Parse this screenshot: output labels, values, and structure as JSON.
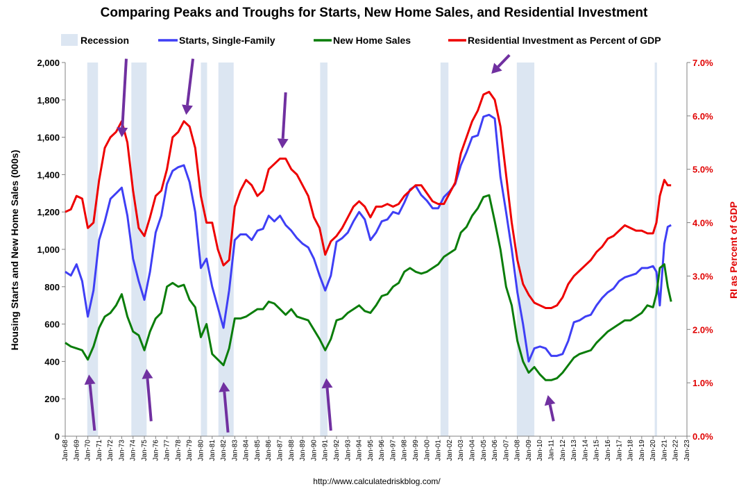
{
  "chart_data": {
    "type": "line",
    "title": "Comparing Peaks and Troughs for Starts, New Home Sales, and Residential Investment",
    "ylabel_left": "Housing Starts and New Home Sales (000s)",
    "ylabel_right": "RI as Percent of GDP",
    "source": "http://www.calculatedriskblog.com/",
    "x_range": [
      1968.0,
      2023.0
    ],
    "ylim_left": [
      0,
      2000
    ],
    "ylim_right": [
      0.0,
      7.0
    ],
    "y_ticks_left": [
      "0",
      "200",
      "400",
      "600",
      "800",
      "1,000",
      "1,200",
      "1,400",
      "1,600",
      "1,800",
      "2,000"
    ],
    "y_ticks_right": [
      "0.0%",
      "1.0%",
      "2.0%",
      "3.0%",
      "4.0%",
      "5.0%",
      "6.0%",
      "7.0%"
    ],
    "x_ticks": [
      "Jan-68",
      "Jan-69",
      "Jan-70",
      "Jan-71",
      "Jan-72",
      "Jan-73",
      "Jan-74",
      "Jan-75",
      "Jan-76",
      "Jan-77",
      "Jan-78",
      "Jan-79",
      "Jan-80",
      "Jan-81",
      "Jan-82",
      "Jan-83",
      "Jan-84",
      "Jan-85",
      "Jan-86",
      "Jan-87",
      "Jan-88",
      "Jan-89",
      "Jan-90",
      "Jan-91",
      "Jan-92",
      "Jan-93",
      "Jan-94",
      "Jan-95",
      "Jan-96",
      "Jan-97",
      "Jan-98",
      "Jan-99",
      "Jan-00",
      "Jan-01",
      "Jan-02",
      "Jan-03",
      "Jan-04",
      "Jan-05",
      "Jan-06",
      "Jan-07",
      "Jan-08",
      "Jan-09",
      "Jan-10",
      "Jan-11",
      "Jan-12",
      "Jan-13",
      "Jan-14",
      "Jan-15",
      "Jan-16",
      "Jan-17",
      "Jan-18",
      "Jan-19",
      "Jan-20",
      "Jan-21",
      "Jan-22",
      "Jan-23"
    ],
    "legend": [
      {
        "name": "Recession",
        "color": "#dce6f2",
        "kind": "box"
      },
      {
        "name": "Starts, Single-Family",
        "color": "#3f3ff5",
        "kind": "line"
      },
      {
        "name": "New Home Sales",
        "color": "#0a7d0a",
        "kind": "line"
      },
      {
        "name": "Residential Investment as Percent of GDP",
        "color": "#ee0000",
        "kind": "line"
      }
    ],
    "recessions": [
      [
        1969.95,
        1970.9
      ],
      [
        1973.85,
        1975.2
      ],
      [
        1980.0,
        1980.55
      ],
      [
        1981.55,
        1982.9
      ],
      [
        1990.55,
        1991.2
      ],
      [
        2001.2,
        2001.9
      ],
      [
        2007.95,
        2009.5
      ],
      [
        2020.15,
        2020.35
      ]
    ],
    "series": [
      {
        "name": "Starts, Single-Family",
        "axis": "left",
        "color": "#3f3ff5",
        "x": [
          1968.0,
          1968.5,
          1969.0,
          1969.5,
          1970.0,
          1970.5,
          1971.0,
          1971.5,
          1972.0,
          1972.5,
          1973.0,
          1973.5,
          1974.0,
          1974.5,
          1975.0,
          1975.5,
          1976.0,
          1976.5,
          1977.0,
          1977.5,
          1978.0,
          1978.5,
          1979.0,
          1979.5,
          1980.0,
          1980.5,
          1981.0,
          1981.5,
          1982.0,
          1982.5,
          1983.0,
          1983.5,
          1984.0,
          1984.5,
          1985.0,
          1985.5,
          1986.0,
          1986.5,
          1987.0,
          1987.5,
          1988.0,
          1988.5,
          1989.0,
          1989.5,
          1990.0,
          1990.5,
          1991.0,
          1991.5,
          1992.0,
          1992.5,
          1993.0,
          1993.5,
          1994.0,
          1994.5,
          1995.0,
          1995.5,
          1996.0,
          1996.5,
          1997.0,
          1997.5,
          1998.0,
          1998.5,
          1999.0,
          1999.5,
          2000.0,
          2000.5,
          2001.0,
          2001.5,
          2002.0,
          2002.5,
          2003.0,
          2003.5,
          2004.0,
          2004.5,
          2005.0,
          2005.5,
          2006.0,
          2006.5,
          2007.0,
          2007.5,
          2008.0,
          2008.5,
          2009.0,
          2009.5,
          2010.0,
          2010.5,
          2011.0,
          2011.5,
          2012.0,
          2012.5,
          2013.0,
          2013.5,
          2014.0,
          2014.5,
          2015.0,
          2015.5,
          2016.0,
          2016.5,
          2017.0,
          2017.5,
          2018.0,
          2018.5,
          2019.0,
          2019.5,
          2020.0,
          2020.3,
          2020.6,
          2021.0,
          2021.3,
          2021.6
        ],
        "values": [
          880,
          860,
          920,
          830,
          640,
          780,
          1050,
          1150,
          1270,
          1300,
          1330,
          1180,
          950,
          830,
          730,
          880,
          1090,
          1180,
          1350,
          1420,
          1440,
          1450,
          1360,
          1200,
          900,
          950,
          800,
          690,
          580,
          780,
          1050,
          1080,
          1080,
          1050,
          1100,
          1110,
          1180,
          1150,
          1180,
          1130,
          1100,
          1060,
          1030,
          1010,
          950,
          860,
          780,
          860,
          1040,
          1060,
          1090,
          1150,
          1200,
          1160,
          1050,
          1090,
          1150,
          1160,
          1200,
          1190,
          1250,
          1320,
          1340,
          1290,
          1260,
          1220,
          1220,
          1280,
          1310,
          1350,
          1450,
          1520,
          1600,
          1610,
          1710,
          1720,
          1700,
          1390,
          1200,
          1000,
          770,
          600,
          400,
          470,
          480,
          470,
          430,
          430,
          440,
          510,
          610,
          620,
          640,
          650,
          700,
          740,
          770,
          790,
          830,
          850,
          860,
          870,
          900,
          900,
          910,
          880,
          700,
          1030,
          1120,
          1130
        ]
      },
      {
        "name": "New Home Sales",
        "axis": "left",
        "color": "#0a7d0a",
        "x": [
          1968.0,
          1968.5,
          1969.0,
          1969.5,
          1970.0,
          1970.5,
          1971.0,
          1971.5,
          1972.0,
          1972.5,
          1973.0,
          1973.5,
          1974.0,
          1974.5,
          1975.0,
          1975.5,
          1976.0,
          1976.5,
          1977.0,
          1977.5,
          1978.0,
          1978.5,
          1979.0,
          1979.5,
          1980.0,
          1980.5,
          1981.0,
          1981.5,
          1982.0,
          1982.5,
          1983.0,
          1983.5,
          1984.0,
          1984.5,
          1985.0,
          1985.5,
          1986.0,
          1986.5,
          1987.0,
          1987.5,
          1988.0,
          1988.5,
          1989.0,
          1989.5,
          1990.0,
          1990.5,
          1991.0,
          1991.5,
          1992.0,
          1992.5,
          1993.0,
          1993.5,
          1994.0,
          1994.5,
          1995.0,
          1995.5,
          1996.0,
          1996.5,
          1997.0,
          1997.5,
          1998.0,
          1998.5,
          1999.0,
          1999.5,
          2000.0,
          2000.5,
          2001.0,
          2001.5,
          2002.0,
          2002.5,
          2003.0,
          2003.5,
          2004.0,
          2004.5,
          2005.0,
          2005.5,
          2006.0,
          2006.5,
          2007.0,
          2007.5,
          2008.0,
          2008.5,
          2009.0,
          2009.5,
          2010.0,
          2010.5,
          2011.0,
          2011.5,
          2012.0,
          2012.5,
          2013.0,
          2013.5,
          2014.0,
          2014.5,
          2015.0,
          2015.5,
          2016.0,
          2016.5,
          2017.0,
          2017.5,
          2018.0,
          2018.5,
          2019.0,
          2019.5,
          2020.0,
          2020.3,
          2020.6,
          2021.0,
          2021.3,
          2021.6
        ],
        "values": [
          500,
          480,
          470,
          460,
          410,
          480,
          580,
          640,
          660,
          700,
          760,
          640,
          560,
          540,
          460,
          560,
          630,
          660,
          800,
          820,
          800,
          810,
          730,
          690,
          530,
          600,
          440,
          410,
          380,
          470,
          630,
          630,
          640,
          660,
          680,
          680,
          720,
          710,
          680,
          650,
          680,
          640,
          630,
          620,
          570,
          520,
          460,
          520,
          620,
          630,
          660,
          680,
          700,
          670,
          660,
          700,
          750,
          760,
          800,
          820,
          880,
          900,
          880,
          870,
          880,
          900,
          920,
          960,
          980,
          1000,
          1090,
          1120,
          1180,
          1220,
          1280,
          1290,
          1150,
          1000,
          800,
          700,
          510,
          400,
          340,
          370,
          330,
          300,
          300,
          310,
          340,
          380,
          420,
          440,
          450,
          460,
          500,
          530,
          560,
          580,
          600,
          620,
          620,
          640,
          660,
          700,
          690,
          760,
          900,
          920,
          800,
          720
        ]
      },
      {
        "name": "Residential Investment as Percent of GDP",
        "axis": "right",
        "color": "#ee0000",
        "x": [
          1968.0,
          1968.5,
          1969.0,
          1969.5,
          1970.0,
          1970.5,
          1971.0,
          1971.5,
          1972.0,
          1972.5,
          1973.0,
          1973.5,
          1974.0,
          1974.5,
          1975.0,
          1975.5,
          1976.0,
          1976.5,
          1977.0,
          1977.5,
          1978.0,
          1978.5,
          1979.0,
          1979.5,
          1980.0,
          1980.5,
          1981.0,
          1981.5,
          1982.0,
          1982.5,
          1983.0,
          1983.5,
          1984.0,
          1984.5,
          1985.0,
          1985.5,
          1986.0,
          1986.5,
          1987.0,
          1987.5,
          1988.0,
          1988.5,
          1989.0,
          1989.5,
          1990.0,
          1990.5,
          1991.0,
          1991.5,
          1992.0,
          1992.5,
          1993.0,
          1993.5,
          1994.0,
          1994.5,
          1995.0,
          1995.5,
          1996.0,
          1996.5,
          1997.0,
          1997.5,
          1998.0,
          1998.5,
          1999.0,
          1999.5,
          2000.0,
          2000.5,
          2001.0,
          2001.5,
          2002.0,
          2002.5,
          2003.0,
          2003.5,
          2004.0,
          2004.5,
          2005.0,
          2005.5,
          2006.0,
          2006.5,
          2007.0,
          2007.5,
          2008.0,
          2008.5,
          2009.0,
          2009.5,
          2010.0,
          2010.5,
          2011.0,
          2011.5,
          2012.0,
          2012.5,
          2013.0,
          2013.5,
          2014.0,
          2014.5,
          2015.0,
          2015.5,
          2016.0,
          2016.5,
          2017.0,
          2017.5,
          2018.0,
          2018.5,
          2019.0,
          2019.5,
          2020.0,
          2020.3,
          2020.6,
          2021.0,
          2021.3,
          2021.6
        ],
        "values": [
          4.2,
          4.25,
          4.5,
          4.45,
          3.9,
          4.0,
          4.8,
          5.4,
          5.6,
          5.7,
          5.9,
          5.5,
          4.6,
          3.9,
          3.75,
          4.1,
          4.5,
          4.6,
          5.0,
          5.6,
          5.7,
          5.9,
          5.8,
          5.4,
          4.5,
          4.0,
          4.0,
          3.5,
          3.2,
          3.3,
          4.3,
          4.6,
          4.8,
          4.7,
          4.5,
          4.6,
          5.0,
          5.1,
          5.2,
          5.2,
          5.0,
          4.9,
          4.7,
          4.5,
          4.1,
          3.9,
          3.4,
          3.65,
          3.75,
          3.9,
          4.1,
          4.3,
          4.4,
          4.3,
          4.1,
          4.3,
          4.3,
          4.35,
          4.3,
          4.35,
          4.5,
          4.6,
          4.7,
          4.7,
          4.55,
          4.4,
          4.35,
          4.35,
          4.55,
          4.75,
          5.3,
          5.6,
          5.9,
          6.1,
          6.4,
          6.45,
          6.3,
          5.8,
          4.9,
          4.0,
          3.3,
          2.85,
          2.65,
          2.5,
          2.45,
          2.4,
          2.4,
          2.45,
          2.6,
          2.85,
          3.0,
          3.1,
          3.2,
          3.3,
          3.45,
          3.55,
          3.7,
          3.75,
          3.85,
          3.95,
          3.9,
          3.85,
          3.85,
          3.8,
          3.8,
          4.0,
          4.5,
          4.8,
          4.7,
          4.7
        ]
      }
    ],
    "annotations": [
      {
        "type": "arrow",
        "color": "#7030a0",
        "direction": "down",
        "tip": [
          1973.0,
          1600
        ],
        "tail": [
          1973.4,
          2020
        ]
      },
      {
        "type": "arrow",
        "color": "#7030a0",
        "direction": "down",
        "tip": [
          1978.7,
          1720
        ],
        "tail": [
          1979.3,
          2020
        ]
      },
      {
        "type": "arrow",
        "color": "#7030a0",
        "direction": "down",
        "tip": [
          1987.2,
          1540
        ],
        "tail": [
          1987.5,
          1840
        ]
      },
      {
        "type": "arrow",
        "color": "#7030a0",
        "direction": "down",
        "tip": [
          2005.7,
          1940
        ],
        "tail": [
          2007.3,
          2040
        ]
      },
      {
        "type": "arrow",
        "color": "#7030a0",
        "direction": "up",
        "tip": [
          1970.1,
          330
        ],
        "tail": [
          1970.6,
          30
        ]
      },
      {
        "type": "arrow",
        "color": "#7030a0",
        "direction": "up",
        "tip": [
          1975.2,
          360
        ],
        "tail": [
          1975.6,
          80
        ]
      },
      {
        "type": "arrow",
        "color": "#7030a0",
        "direction": "up",
        "tip": [
          1982.0,
          290
        ],
        "tail": [
          1982.4,
          20
        ]
      },
      {
        "type": "arrow",
        "color": "#7030a0",
        "direction": "up",
        "tip": [
          1991.1,
          310
        ],
        "tail": [
          1991.5,
          30
        ]
      },
      {
        "type": "arrow",
        "color": "#7030a0",
        "direction": "up",
        "tip": [
          2010.7,
          220
        ],
        "tail": [
          2011.2,
          80
        ]
      }
    ]
  }
}
